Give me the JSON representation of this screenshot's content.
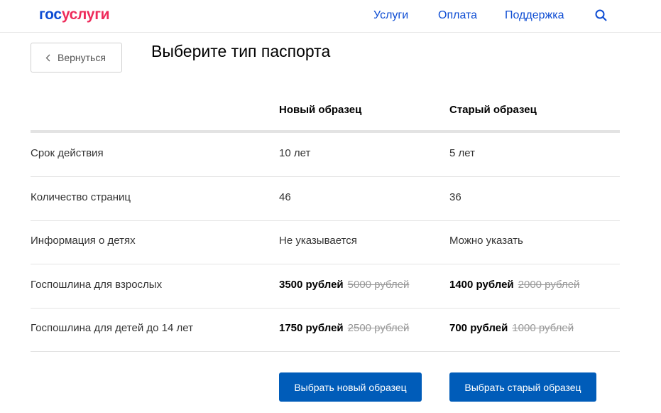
{
  "header": {
    "logo_part1": "гос",
    "logo_part2": "услуги",
    "nav": [
      "Услуги",
      "Оплата",
      "Поддержка"
    ]
  },
  "back_label": "Вернуться",
  "title": "Выберите тип паспорта",
  "columns": [
    "Новый образец",
    "Старый образец"
  ],
  "rows": [
    {
      "label": "Срок действия",
      "new": "10 лет",
      "old": "5 лет"
    },
    {
      "label": "Количество страниц",
      "new": "46",
      "old": "36"
    },
    {
      "label": "Информация о детях",
      "new": "Не указывается",
      "old": "Можно указать"
    },
    {
      "label": "Госпошлина для взрослых",
      "new": "3500 рублей",
      "new_strike": "5000 рублей",
      "old": "1400 рублей",
      "old_strike": "2000 рублей"
    },
    {
      "label": "Госпошлина для детей до 14 лет",
      "new": "1750 рублей",
      "new_strike": "2500 рублей",
      "old": "700 рублей",
      "old_strike": "1000 рублей"
    }
  ],
  "buttons": {
    "choose_new": "Выбрать новый образец",
    "choose_old": "Выбрать старый образец"
  },
  "colors": {
    "brand_blue": "#0d4cd3",
    "brand_red": "#ee2a5a",
    "button": "#005cb9"
  }
}
